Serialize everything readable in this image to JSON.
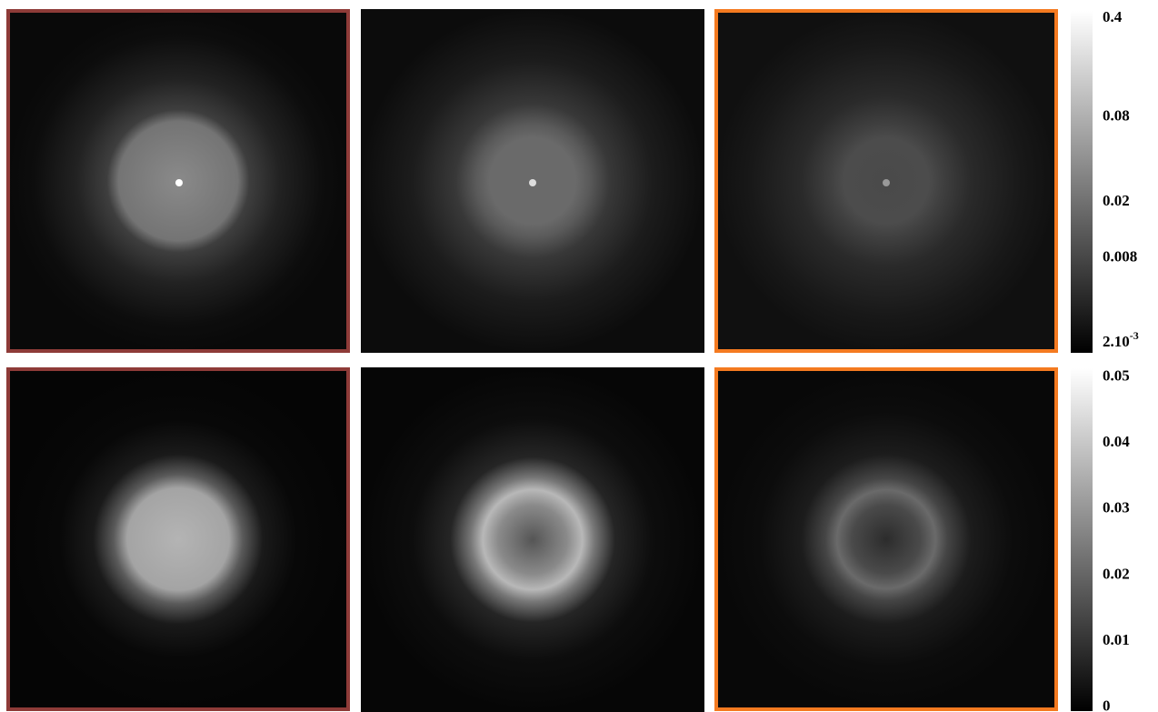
{
  "colorbars": [
    {
      "scale": "log",
      "lim": [
        0.0017,
        0.45
      ],
      "ticks": [
        0.4,
        0.08,
        0.02,
        0.008,
        {
          "value": 0.002,
          "label": "2.10",
          "exponent": "-3"
        }
      ]
    },
    {
      "scale": "linear",
      "lim": [
        -0.0006,
        0.0513
      ],
      "ticks": [
        0.05,
        0.04,
        0.03,
        0.02,
        0.01,
        0
      ]
    }
  ]
}
